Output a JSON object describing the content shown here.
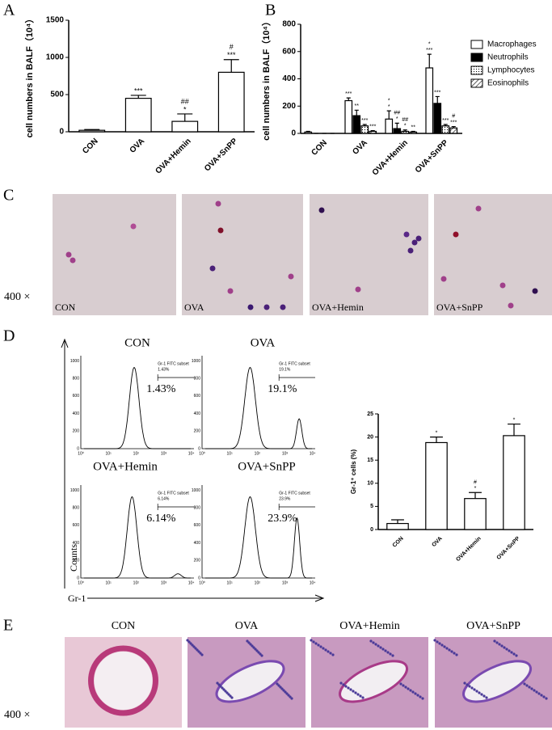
{
  "panel_labels": [
    "A",
    "B",
    "C",
    "D",
    "E"
  ],
  "chart_data": [
    {
      "type": "bar",
      "ylabel": "cell numbers in BALF（10⁴）",
      "categories": [
        "CON",
        "OVA",
        "OVA+Hemin",
        "OVA+SnPP"
      ],
      "values": [
        20,
        450,
        140,
        800
      ],
      "errors": [
        10,
        40,
        100,
        170
      ],
      "color": "#ffffff",
      "annotations": [
        null,
        [
          "***"
        ],
        [
          "##",
          "*"
        ],
        [
          "#",
          "***"
        ]
      ],
      "ylim": [
        0,
        1500
      ],
      "yticks": [
        0,
        500,
        1000,
        1500
      ]
    },
    {
      "type": "grouped-bar",
      "ylabel": "cell numbers in BALF（10⁴）",
      "categories": [
        "CON",
        "OVA",
        "OVA+Hemin",
        "OVA+SnPP"
      ],
      "series": [
        {
          "name": "Macrophages",
          "color": "#ffffff",
          "pattern": "none",
          "values": [
            10,
            240,
            105,
            480
          ],
          "errors": [
            5,
            20,
            60,
            100
          ],
          "annotations": [
            null,
            [
              "***"
            ],
            [
              "*",
              "*"
            ],
            [
              "*",
              "***"
            ]
          ]
        },
        {
          "name": "Neutrophils",
          "color": "#000000",
          "pattern": "none",
          "values": [
            0,
            130,
            35,
            220
          ],
          "errors": [
            0,
            40,
            40,
            50
          ],
          "annotations": [
            null,
            [
              "**"
            ],
            [
              "##",
              "*"
            ],
            [
              "***"
            ]
          ]
        },
        {
          "name": "Lymphocytes",
          "color": "#ffffff",
          "pattern": "dots",
          "values": [
            0,
            55,
            15,
            55
          ],
          "errors": [
            0,
            10,
            10,
            10
          ],
          "annotations": [
            null,
            [
              "***"
            ],
            [
              "##",
              "*"
            ],
            [
              "***"
            ]
          ]
        },
        {
          "name": "Eosinophils",
          "color": "#ffffff",
          "pattern": "hatch",
          "values": [
            0,
            15,
            10,
            40
          ],
          "errors": [
            0,
            5,
            5,
            10
          ],
          "annotations": [
            null,
            [
              "***"
            ],
            [
              "**"
            ],
            [
              "#",
              "***"
            ]
          ]
        }
      ],
      "ylim": [
        0,
        800
      ],
      "yticks": [
        0,
        200,
        400,
        600,
        800
      ],
      "legend": "right"
    },
    {
      "type": "bar",
      "ylabel": "Gr-1⁺ cells (%)",
      "categories": [
        "CON",
        "OVA",
        "OVA+Hemin",
        "OVA+SnPP"
      ],
      "values": [
        1.3,
        18.8,
        6.7,
        20.3
      ],
      "errors": [
        0.8,
        1.2,
        1.3,
        2.5
      ],
      "color": "#ffffff",
      "annotations": [
        null,
        [
          "*"
        ],
        [
          "#",
          "*"
        ],
        [
          "*"
        ]
      ],
      "ylim": [
        0,
        25
      ],
      "yticks": [
        0,
        5,
        10,
        15,
        20,
        25
      ]
    }
  ],
  "micrographs_c": {
    "magnification": "400 ×",
    "labels": [
      "CON",
      "OVA",
      "OVA+Hemin",
      "OVA+SnPP"
    ]
  },
  "flow": {
    "y_axis": "Counts",
    "x_axis": "Gr-1",
    "yticks": [
      "0",
      "200",
      "400",
      "600",
      "800",
      "1000"
    ],
    "xticks": [
      "10⁰",
      "10¹",
      "10²",
      "10³",
      "10⁴"
    ],
    "gate": "Gr-1 FITC subset",
    "plots": [
      {
        "title": "CON",
        "percent": "1.43%"
      },
      {
        "title": "OVA",
        "percent": "19.1%"
      },
      {
        "title": "OVA+Hemin",
        "percent": "6.14%"
      },
      {
        "title": "OVA+SnPP",
        "percent": "23.9%"
      }
    ]
  },
  "micrographs_e": {
    "magnification": "400 ×",
    "titles": [
      "CON",
      "OVA",
      "OVA+Hemin",
      "OVA+SnPP"
    ]
  }
}
